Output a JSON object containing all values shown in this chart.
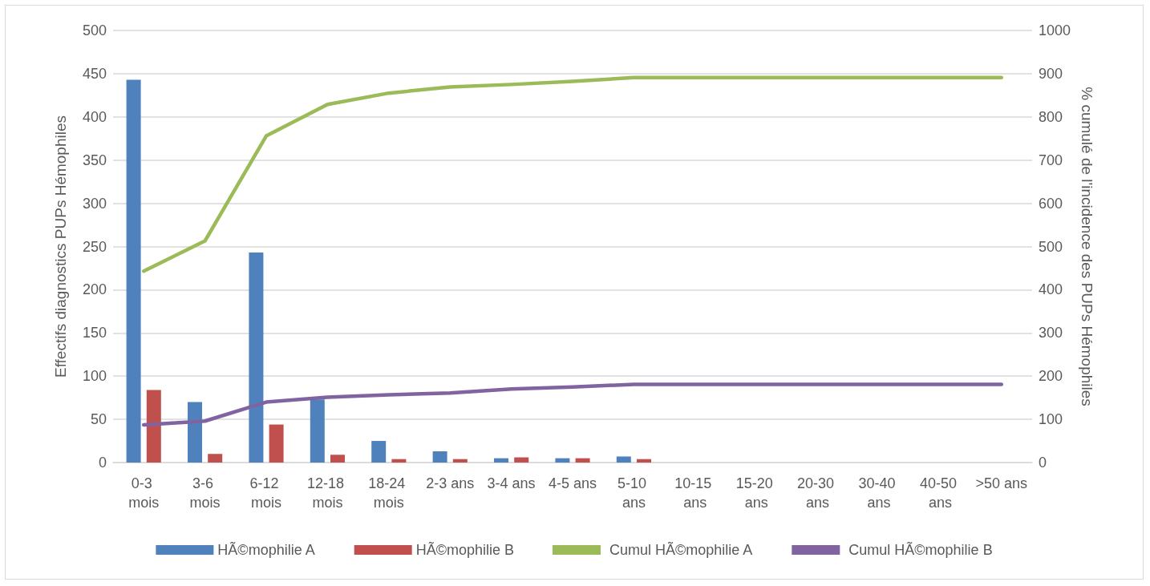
{
  "chart_data": {
    "type": "bar",
    "categories": [
      "0-3 mois",
      "3-6 mois",
      "6-12 mois",
      "12-18 mois",
      "18-24 mois",
      "2-3 ans",
      "3-4 ans",
      "4-5 ans",
      "5-10 ans",
      "10-15 ans",
      "15-20 ans",
      "20-30 ans",
      "30-40 ans",
      "40-50 ans",
      ">50 ans"
    ],
    "series": [
      {
        "name": "HÃ©mophilie A",
        "color": "#4f81bd",
        "values": [
          443,
          70,
          243,
          73,
          25,
          13,
          5,
          5,
          7,
          0,
          0,
          0,
          0,
          0,
          0
        ]
      },
      {
        "name": "HÃ©mophilie B",
        "color": "#c0504d",
        "values": [
          84,
          10,
          44,
          9,
          4,
          4,
          6,
          5,
          4,
          0,
          0,
          0,
          0,
          0,
          0
        ]
      },
      {
        "name": "Cumul HÃ©mophilie A",
        "type": "line",
        "axis": "y2",
        "color": "#9bbb59",
        "values": [
          443,
          513,
          756,
          829,
          855,
          869,
          875,
          882,
          891,
          891,
          891,
          891,
          891,
          891,
          891
        ]
      },
      {
        "name": "Cumul HÃ©mophilie B",
        "type": "line",
        "axis": "y2",
        "color": "#8064a2",
        "values": [
          87,
          96,
          140,
          151,
          157,
          161,
          170,
          175,
          181,
          181,
          181,
          181,
          181,
          181,
          181
        ]
      }
    ],
    "ylabel": "Effectifs diagnostics PUPs Hémophiles",
    "y2label": "% cumulé de l'incidence des PUPs Hémophiles",
    "ylim": [
      0,
      500
    ],
    "yticks": [
      0,
      50,
      100,
      150,
      200,
      250,
      300,
      350,
      400,
      450,
      500
    ],
    "y2lim": [
      0,
      1000
    ],
    "y2ticks": [
      0,
      100,
      200,
      300,
      400,
      500,
      600,
      700,
      800,
      900,
      1000
    ],
    "grid": "y",
    "legend": "bottom",
    "marker": "none",
    "line_style": "solid"
  }
}
